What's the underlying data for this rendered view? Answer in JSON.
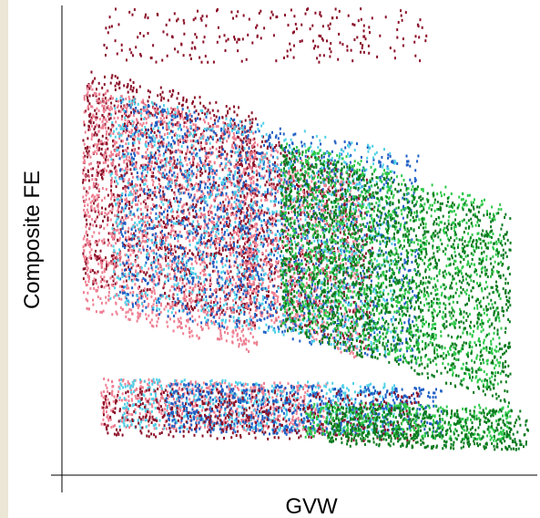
{
  "chart_data": {
    "type": "scatter",
    "title": "",
    "xlabel": "GVW",
    "ylabel": "Composite FE",
    "ticks_shown": false,
    "grid": false,
    "legend": "none",
    "xlim": [
      0,
      1
    ],
    "ylim": [
      0,
      1
    ],
    "series": [
      {
        "color": "#8b1028"
      },
      {
        "color": "#ee7f92"
      },
      {
        "color": "#1f5fc4"
      },
      {
        "color": "#4fd0e8"
      },
      {
        "color": "#2ec84a"
      },
      {
        "color": "#0a7a1e"
      }
    ],
    "regions": [
      {
        "series": 0,
        "description_free": true,
        "x_range": [
          0.06,
          0.77
        ],
        "y_range": [
          0.88,
          1.0
        ],
        "density": 230,
        "slope": 0.0
      },
      {
        "series": 0,
        "x_range": [
          0.02,
          0.4
        ],
        "y_range": [
          0.34,
          0.82
        ],
        "density": 1400,
        "slope": 0.35
      },
      {
        "series": 1,
        "x_range": [
          0.02,
          0.4
        ],
        "y_range": [
          0.28,
          0.78
        ],
        "density": 1700,
        "slope": 0.35
      },
      {
        "series": 0,
        "x_range": [
          0.36,
          0.65
        ],
        "y_range": [
          0.28,
          0.68
        ],
        "density": 750,
        "slope": 0.45
      },
      {
        "series": 1,
        "x_range": [
          0.38,
          0.62
        ],
        "y_range": [
          0.27,
          0.66
        ],
        "density": 700,
        "slope": 0.45
      },
      {
        "series": 2,
        "x_range": [
          0.1,
          0.75
        ],
        "y_range": [
          0.27,
          0.74
        ],
        "density": 1500,
        "slope": 0.45
      },
      {
        "series": 3,
        "x_range": [
          0.08,
          0.7
        ],
        "y_range": [
          0.28,
          0.75
        ],
        "density": 1100,
        "slope": 0.45
      },
      {
        "series": 4,
        "x_range": [
          0.45,
          0.93
        ],
        "y_range": [
          0.22,
          0.64
        ],
        "density": 1500,
        "slope": 0.6
      },
      {
        "series": 5,
        "x_range": [
          0.45,
          0.95
        ],
        "y_range": [
          0.2,
          0.62
        ],
        "density": 1700,
        "slope": 0.65
      },
      {
        "series": 1,
        "x_range": [
          0.06,
          0.55
        ],
        "y_range": [
          0.06,
          0.17
        ],
        "density": 700,
        "slope": 0.18
      },
      {
        "series": 3,
        "x_range": [
          0.1,
          0.7
        ],
        "y_range": [
          0.06,
          0.17
        ],
        "density": 600,
        "slope": 0.18
      },
      {
        "series": 2,
        "x_range": [
          0.2,
          0.8
        ],
        "y_range": [
          0.05,
          0.16
        ],
        "density": 650,
        "slope": 0.18
      },
      {
        "series": 0,
        "x_range": [
          0.06,
          0.75
        ],
        "y_range": [
          0.04,
          0.15
        ],
        "density": 500,
        "slope": 0.18
      },
      {
        "series": 4,
        "x_range": [
          0.5,
          0.95
        ],
        "y_range": [
          0.04,
          0.12
        ],
        "density": 400,
        "slope": 0.18
      },
      {
        "series": 5,
        "x_range": [
          0.55,
          0.99
        ],
        "y_range": [
          0.02,
          0.11
        ],
        "density": 550,
        "slope": 0.18
      }
    ]
  }
}
